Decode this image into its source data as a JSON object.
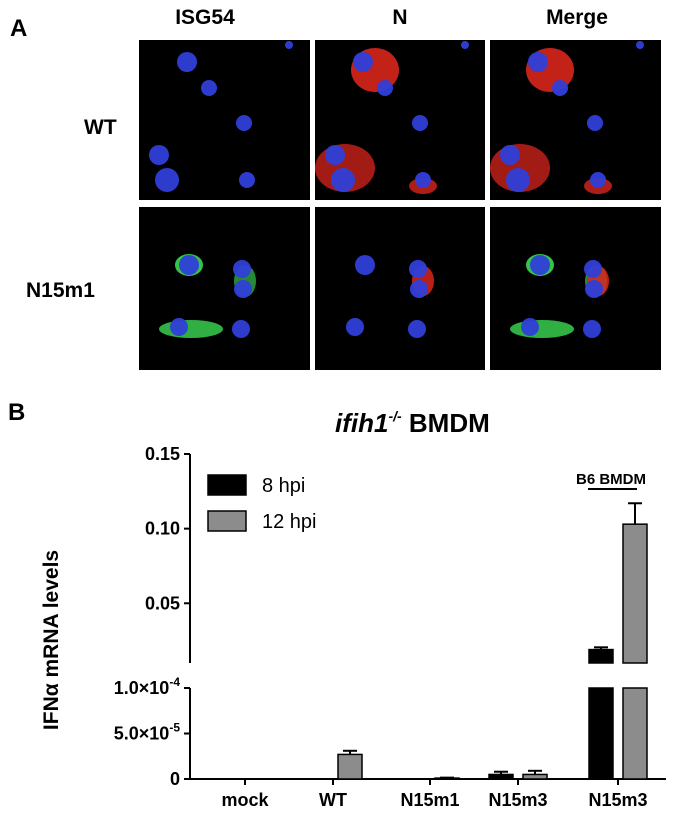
{
  "panel_a": {
    "label": "A",
    "column_titles": [
      {
        "text": "ISG54",
        "color": "#2aa84a"
      },
      {
        "text": "N",
        "color": "#e0201b"
      },
      {
        "text": "Merge",
        "color": "#000000"
      }
    ],
    "row_titles": [
      "WT",
      "N15m1"
    ],
    "image_colors": {
      "background": "#000000",
      "nuclei": "#2f3fd8",
      "isg54": "#35c24a",
      "n_protein": "#d8261c"
    }
  },
  "panel_b": {
    "label": "B",
    "title_italic": "ifih1",
    "title_sup": "-/-",
    "title_rest": " BMDM",
    "ylabel": "IFNα mRNA levels",
    "bracket_label": "B6 BMDM"
  },
  "chart_data": {
    "type": "bar",
    "axis_break": true,
    "ylim_lower": [
      0,
      0.0001
    ],
    "ylim_upper": [
      0.01,
      0.15
    ],
    "yticks_lower": [
      "0",
      "5.0×10-5",
      "1.0×10-4"
    ],
    "yticks_upper": [
      "0.05",
      "0.10",
      "0.15"
    ],
    "categories": [
      "mock",
      "WT",
      "N15m1",
      "N15m3",
      "N15m3"
    ],
    "legend_position": "top-left",
    "series": [
      {
        "name": "8 hpi",
        "color": "#000000",
        "values": [
          0,
          0,
          0,
          5e-06,
          0.019
        ],
        "errors": [
          0,
          0,
          0,
          3e-06,
          0.0015
        ]
      },
      {
        "name": "12 hpi",
        "color": "#8c8c8c",
        "values": [
          0,
          2.7e-05,
          1e-06,
          5e-06,
          0.103
        ],
        "errors": [
          0,
          4e-06,
          5e-07,
          4e-06,
          0.014
        ]
      }
    ]
  }
}
